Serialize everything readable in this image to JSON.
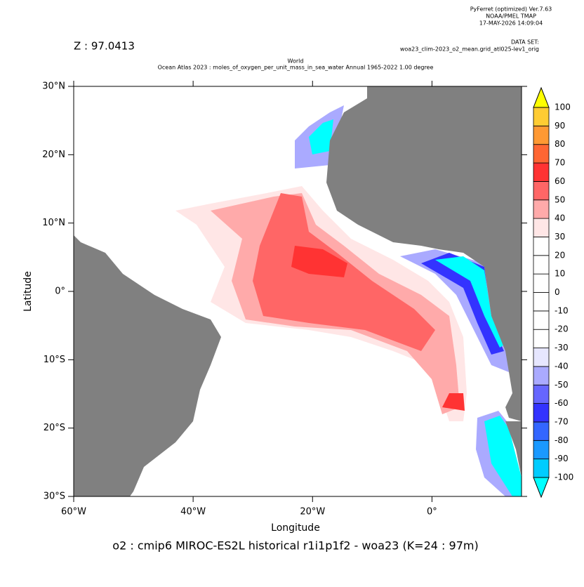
{
  "header": {
    "software": "PyFerret (optimized) Ver.7.63",
    "lab": "NOAA/PMEL TMAP",
    "date": "17-MAY-2026 14:09:04",
    "dataset_label": "DATA SET:",
    "dataset": "woa23_clim-2023_o2_mean.grid_atl025-lev1_orig",
    "z": "Z : 97.0413",
    "title1": "World",
    "title2": "Ocean Atlas 2023 : moles_of_oxygen_per_unit_mass_in_sea_water Annual 1965-2022 1.00 degree"
  },
  "chart_data": {
    "type": "map",
    "xlabel": "Longitude",
    "ylabel": "Latitude",
    "footer": "o2 : cmip6 MIROC-ES2L historical r1i1p1f2 - woa23  (K=24 : 97m)",
    "xlim": [
      -60,
      15
    ],
    "ylim": [
      -30,
      30
    ],
    "xticks": [
      {
        "value": -60,
        "label": "60°W"
      },
      {
        "value": -40,
        "label": "40°W"
      },
      {
        "value": -20,
        "label": "20°W"
      },
      {
        "value": 0,
        "label": "0°"
      }
    ],
    "yticks": [
      {
        "value": 30,
        "label": "30°N"
      },
      {
        "value": 20,
        "label": "20°N"
      },
      {
        "value": 10,
        "label": "10°N"
      },
      {
        "value": 0,
        "label": "0°"
      },
      {
        "value": -10,
        "label": "10°S"
      },
      {
        "value": -20,
        "label": "20°S"
      },
      {
        "value": -30,
        "label": "30°S"
      }
    ],
    "colorbar": {
      "levels": [
        -100,
        -90,
        -80,
        -70,
        -60,
        -50,
        -40,
        -30,
        -20,
        -10,
        0,
        10,
        20,
        30,
        40,
        50,
        60,
        70,
        80,
        90,
        100
      ],
      "colors": [
        "#00ccff",
        "#1a99ff",
        "#3366ff",
        "#3333ff",
        "#6666ff",
        "#aaaaff",
        "#e6e6ff",
        "#ffffff",
        "#ffffff",
        "#ffffff",
        "#ffffff",
        "#ffffff",
        "#ffffff",
        "#ffe6e6",
        "#ffaaaa",
        "#ff6666",
        "#ff3333",
        "#ff6633",
        "#ff9933",
        "#ffcc33"
      ],
      "under_color": "#00ffff",
      "over_color": "#ffff00"
    }
  }
}
